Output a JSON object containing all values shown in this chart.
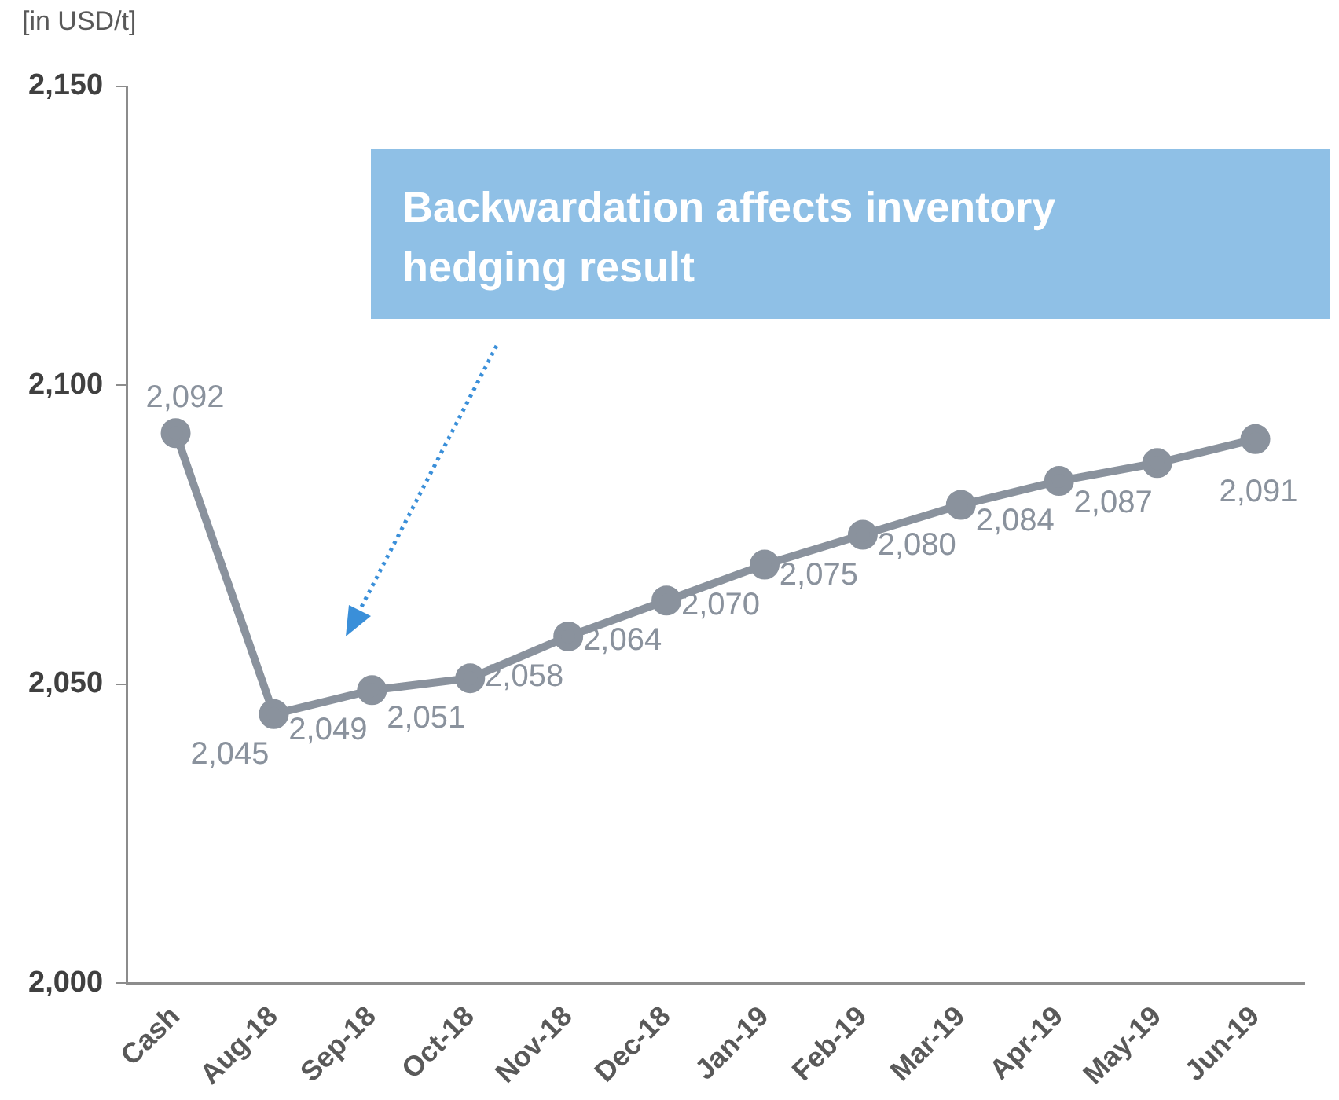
{
  "chart_data": {
    "type": "line",
    "ylabel": "[in USD/t]",
    "annotations": [
      "Backwardation affects inventory hedging result"
    ],
    "categories": [
      "Cash",
      "Aug-18",
      "Sep-18",
      "Oct-18",
      "Nov-18",
      "Dec-18",
      "Jan-19",
      "Feb-19",
      "Mar-19",
      "Apr-19",
      "May-19",
      "Jun-19"
    ],
    "series": [
      {
        "color": "#8a929d",
        "values": [
          2092,
          2045,
          2049,
          2051,
          2058,
          2064,
          2070,
          2075,
          2080,
          2084,
          2087,
          2091
        ],
        "value_labels": [
          "2,092",
          "2,045",
          "2,049",
          "2,051",
          "2,058",
          "2,064",
          "2,070",
          "2,075",
          "2,080",
          "2,084",
          "2,087",
          "2,091"
        ]
      }
    ],
    "ylim": [
      2000,
      2150
    ],
    "yticks": [
      {
        "value": 2000,
        "label": "2,000"
      },
      {
        "value": 2050,
        "label": "2,050"
      },
      {
        "value": 2100,
        "label": "2,100"
      },
      {
        "value": 2150,
        "label": "2,150"
      }
    ],
    "marker": "circle",
    "line_style": "solid",
    "legend": false
  }
}
